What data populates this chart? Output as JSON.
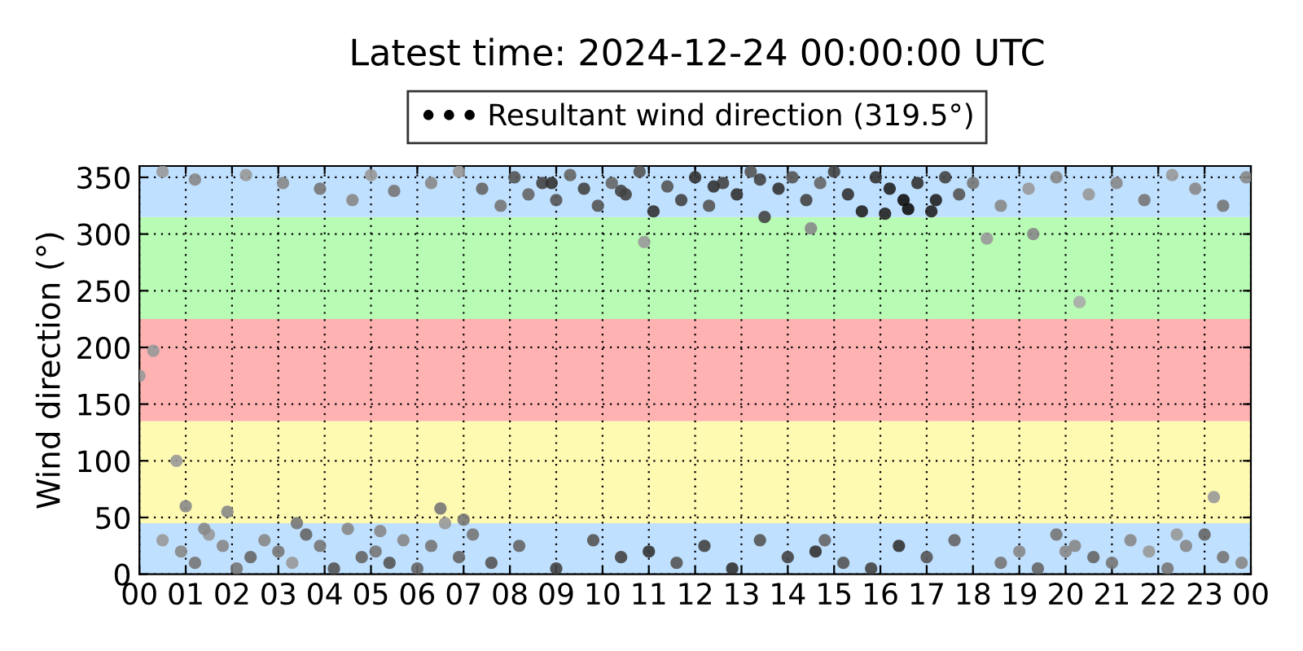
{
  "chart_data": {
    "type": "scatter",
    "title": "Latest time: 2024-12-24 00:00:00 UTC",
    "ylabel": "Wind direction (°)",
    "xlim": [
      0,
      24
    ],
    "ylim": [
      0,
      360
    ],
    "xticks": [
      {
        "value": 0,
        "label": "00"
      },
      {
        "value": 1,
        "label": "01"
      },
      {
        "value": 2,
        "label": "02"
      },
      {
        "value": 3,
        "label": "03"
      },
      {
        "value": 4,
        "label": "04"
      },
      {
        "value": 5,
        "label": "05"
      },
      {
        "value": 6,
        "label": "06"
      },
      {
        "value": 7,
        "label": "07"
      },
      {
        "value": 8,
        "label": "08"
      },
      {
        "value": 9,
        "label": "09"
      },
      {
        "value": 10,
        "label": "10"
      },
      {
        "value": 11,
        "label": "11"
      },
      {
        "value": 12,
        "label": "12"
      },
      {
        "value": 13,
        "label": "13"
      },
      {
        "value": 14,
        "label": "14"
      },
      {
        "value": 15,
        "label": "15"
      },
      {
        "value": 16,
        "label": "16"
      },
      {
        "value": 17,
        "label": "17"
      },
      {
        "value": 18,
        "label": "18"
      },
      {
        "value": 19,
        "label": "19"
      },
      {
        "value": 20,
        "label": "20"
      },
      {
        "value": 21,
        "label": "21"
      },
      {
        "value": 22,
        "label": "22"
      },
      {
        "value": 23,
        "label": "23"
      },
      {
        "value": 24,
        "label": "00"
      }
    ],
    "yticks": [
      0,
      50,
      100,
      150,
      200,
      250,
      300,
      350
    ],
    "grid": true,
    "legend": "top",
    "marker": "circle",
    "bands": [
      {
        "axis": "y",
        "from": 0,
        "to": 45,
        "color": "#bfe0ff"
      },
      {
        "axis": "y",
        "from": 45,
        "to": 135,
        "color": "#fffab2"
      },
      {
        "axis": "y",
        "from": 135,
        "to": 225,
        "color": "#ffb2b2"
      },
      {
        "axis": "y",
        "from": 225,
        "to": 315,
        "color": "#b8fbb4"
      },
      {
        "axis": "y",
        "from": 315,
        "to": 360,
        "color": "#bfe0ff"
      }
    ],
    "series": [
      {
        "name": "Resultant wind direction (319.5°)",
        "color": "#000000",
        "x": [
          0.0,
          0.3,
          0.8,
          1.0,
          1.9,
          6.5,
          10.9,
          14.5,
          18.3,
          19.3,
          20.3,
          23.2,
          0.5,
          1.2,
          2.3,
          3.1,
          3.9,
          4.6,
          5.0,
          5.5,
          6.3,
          6.9,
          7.4,
          7.8,
          8.1,
          8.4,
          8.7,
          9.0,
          9.3,
          9.6,
          9.9,
          10.2,
          10.5,
          10.8,
          11.1,
          11.4,
          11.7,
          12.0,
          12.3,
          12.6,
          12.9,
          13.2,
          13.5,
          13.8,
          14.1,
          14.4,
          14.7,
          15.0,
          15.3,
          15.6,
          15.9,
          16.2,
          16.5,
          16.8,
          17.1,
          17.4,
          17.7,
          18.0,
          18.6,
          19.2,
          19.8,
          20.5,
          21.1,
          21.7,
          22.3,
          22.8,
          23.4,
          23.9,
          8.9,
          10.4,
          12.4,
          13.4,
          16.1,
          16.6,
          17.2,
          0.5,
          0.9,
          1.2,
          1.5,
          1.8,
          2.1,
          2.4,
          2.7,
          3.0,
          3.3,
          3.6,
          3.9,
          4.2,
          4.5,
          4.8,
          5.1,
          5.4,
          5.7,
          6.0,
          6.3,
          6.6,
          6.9,
          7.2,
          7.6,
          8.2,
          9.0,
          9.8,
          10.4,
          11.0,
          11.6,
          12.2,
          12.8,
          13.4,
          14.0,
          14.6,
          15.2,
          15.8,
          16.4,
          17.0,
          17.6,
          18.6,
          19.0,
          19.4,
          19.8,
          20.2,
          20.6,
          21.0,
          21.4,
          21.8,
          22.2,
          22.6,
          23.0,
          23.4,
          23.8,
          1.4,
          3.4,
          5.2,
          7.0,
          14.8,
          20.0,
          22.4
        ],
        "values": [
          175,
          197,
          100,
          60,
          55,
          58,
          293,
          305,
          296,
          300,
          240,
          68,
          355,
          348,
          352,
          345,
          340,
          330,
          352,
          338,
          345,
          355,
          340,
          325,
          350,
          335,
          345,
          330,
          352,
          340,
          325,
          345,
          335,
          355,
          320,
          342,
          330,
          350,
          325,
          345,
          335,
          355,
          315,
          340,
          350,
          330,
          345,
          355,
          335,
          320,
          350,
          340,
          330,
          345,
          320,
          350,
          335,
          345,
          325,
          340,
          350,
          335,
          345,
          330,
          352,
          340,
          325,
          350,
          345,
          338,
          342,
          348,
          318,
          322,
          330,
          30,
          20,
          10,
          35,
          25,
          5,
          15,
          30,
          20,
          10,
          35,
          25,
          5,
          40,
          15,
          20,
          10,
          30,
          5,
          25,
          45,
          15,
          35,
          10,
          25,
          5,
          30,
          15,
          20,
          10,
          25,
          5,
          30,
          15,
          20,
          10,
          5,
          25,
          15,
          30,
          10,
          20,
          5,
          35,
          25,
          15,
          10,
          30,
          20,
          5,
          25,
          35,
          15,
          10,
          40,
          45,
          38,
          48,
          30,
          20,
          35
        ],
        "colors": [
          "#999999",
          "#999999",
          "#999999",
          "#888888",
          "#888888",
          "#777777",
          "#999999",
          "#888888",
          "#999999",
          "#888888",
          "#aaaaaa",
          "#999999",
          "#999999",
          "#888888",
          "#999999",
          "#888888",
          "#777777",
          "#888888",
          "#999999",
          "#777777",
          "#888888",
          "#999999",
          "#666666",
          "#777777",
          "#555555",
          "#666666",
          "#444444",
          "#555555",
          "#666666",
          "#444444",
          "#555555",
          "#666666",
          "#444444",
          "#555555",
          "#333333",
          "#555555",
          "#444444",
          "#333333",
          "#555555",
          "#444444",
          "#333333",
          "#555555",
          "#444444",
          "#333333",
          "#555555",
          "#444444",
          "#666666",
          "#444444",
          "#333333",
          "#222222",
          "#333333",
          "#222222",
          "#111111",
          "#333333",
          "#222222",
          "#444444",
          "#555555",
          "#777777",
          "#888888",
          "#999999",
          "#888888",
          "#999999",
          "#888888",
          "#777777",
          "#999999",
          "#888888",
          "#777777",
          "#888888",
          "#333333",
          "#444444",
          "#333333",
          "#444444",
          "#222222",
          "#111111",
          "#222222",
          "#999999",
          "#888888",
          "#777777",
          "#999999",
          "#888888",
          "#777777",
          "#666666",
          "#888888",
          "#777777",
          "#999999",
          "#666666",
          "#777777",
          "#555555",
          "#888888",
          "#666666",
          "#777777",
          "#555555",
          "#888888",
          "#666666",
          "#777777",
          "#999999",
          "#666666",
          "#777777",
          "#555555",
          "#666666",
          "#444444",
          "#555555",
          "#444444",
          "#333333",
          "#555555",
          "#444444",
          "#333333",
          "#555555",
          "#444444",
          "#333333",
          "#555555",
          "#444444",
          "#333333",
          "#555555",
          "#666666",
          "#777777",
          "#888888",
          "#666666",
          "#777777",
          "#888888",
          "#666666",
          "#777777",
          "#888888",
          "#999999",
          "#777777",
          "#888888",
          "#666666",
          "#777777",
          "#888888",
          "#888888",
          "#777777",
          "#888888",
          "#777777",
          "#666666",
          "#888888",
          "#999999"
        ]
      }
    ]
  }
}
